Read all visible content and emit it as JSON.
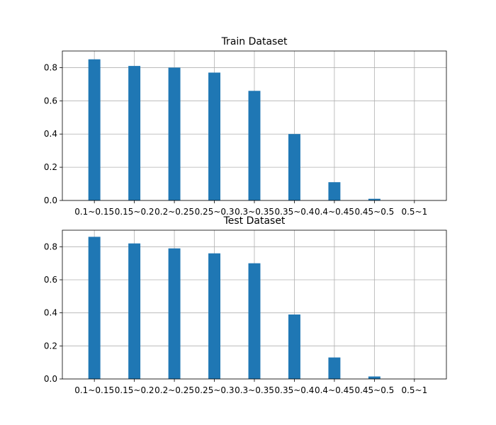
{
  "chart_data": [
    {
      "type": "bar",
      "title": "Train Dataset",
      "categories": [
        "0.1~0.15",
        "0.15~0.2",
        "0.2~0.25",
        "0.25~0.3",
        "0.3~0.35",
        "0.35~0.4",
        "0.4~0.45",
        "0.45~0.5",
        "0.5~1"
      ],
      "values": [
        0.85,
        0.81,
        0.8,
        0.77,
        0.66,
        0.4,
        0.11,
        0.01,
        0.0
      ],
      "xlabel": "",
      "ylabel": "",
      "ylim": [
        0,
        0.9
      ],
      "yticks": [
        "0.0",
        "0.2",
        "0.4",
        "0.6",
        "0.8"
      ],
      "grid": true,
      "bar_color": "#1f77b4"
    },
    {
      "type": "bar",
      "title": "Test Dataset",
      "categories": [
        "0.1~0.15",
        "0.15~0.2",
        "0.2~0.25",
        "0.25~0.3",
        "0.3~0.35",
        "0.35~0.4",
        "0.4~0.45",
        "0.45~0.5",
        "0.5~1"
      ],
      "values": [
        0.86,
        0.82,
        0.79,
        0.76,
        0.7,
        0.39,
        0.13,
        0.015,
        0.0
      ],
      "xlabel": "",
      "ylabel": "",
      "ylim": [
        0,
        0.9
      ],
      "yticks": [
        "0.0",
        "0.2",
        "0.4",
        "0.6",
        "0.8"
      ],
      "grid": true,
      "bar_color": "#1f77b4"
    }
  ]
}
